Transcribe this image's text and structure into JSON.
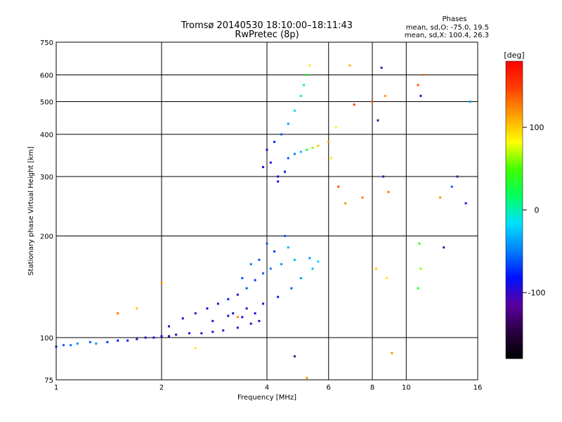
{
  "chart_data": {
    "type": "scatter",
    "title": "Tromsø 20140530 18:10:00–18:11:43",
    "subtitle": "RwPretec (8p)",
    "xlabel": "Frequency [MHz]",
    "ylabel": "Stationary phase Virtual Height [km]",
    "xscale": "log",
    "yscale": "log",
    "xlim": [
      1,
      16
    ],
    "ylim": [
      75,
      750
    ],
    "xticks": [
      1,
      2,
      4,
      6,
      8,
      10,
      16
    ],
    "yticks": [
      75,
      100,
      200,
      300,
      400,
      500,
      600,
      750
    ],
    "grid": true,
    "phase_stats": {
      "title": "Phases",
      "line_o": "mean, sd,O: -75.0, 19.5",
      "line_x": "mean, sd,X: 100.4, 26.3"
    },
    "colorbar": {
      "label": "[deg]",
      "min": -180,
      "max": 180,
      "ticks": [
        100,
        0,
        -100
      ],
      "colors": [
        "#000000",
        "#2a0040",
        "#5a00a0",
        "#0010ff",
        "#0080ff",
        "#00e0ff",
        "#00ff60",
        "#40ff00",
        "#ffff00",
        "#ffa000",
        "#ff4000",
        "#ff0000"
      ]
    },
    "series": [
      {
        "name": "traces",
        "points": [
          [
            1.0,
            94,
            -70
          ],
          [
            1.05,
            95,
            -60
          ],
          [
            1.1,
            95,
            -50
          ],
          [
            1.15,
            96,
            -45
          ],
          [
            1.25,
            97,
            -60
          ],
          [
            1.3,
            96,
            -40
          ],
          [
            1.4,
            97,
            -70
          ],
          [
            1.5,
            98,
            -80
          ],
          [
            1.6,
            98,
            -90
          ],
          [
            1.7,
            99,
            -100
          ],
          [
            1.8,
            100,
            -100
          ],
          [
            1.9,
            100,
            -90
          ],
          [
            2.0,
            101,
            -100
          ],
          [
            2.1,
            101,
            -90
          ],
          [
            2.2,
            102,
            -95
          ],
          [
            2.4,
            103,
            -90
          ],
          [
            2.6,
            103,
            -100
          ],
          [
            2.8,
            104,
            -95
          ],
          [
            3.0,
            105,
            -100
          ],
          [
            3.3,
            107,
            -100
          ],
          [
            3.6,
            110,
            -100
          ],
          [
            3.8,
            112,
            -95
          ],
          [
            2.1,
            108,
            -100
          ],
          [
            2.3,
            114,
            -95
          ],
          [
            2.5,
            118,
            -100
          ],
          [
            2.7,
            122,
            -90
          ],
          [
            2.9,
            126,
            -95
          ],
          [
            3.1,
            130,
            -80
          ],
          [
            3.3,
            134,
            -90
          ],
          [
            3.5,
            140,
            -60
          ],
          [
            3.7,
            148,
            -70
          ],
          [
            3.9,
            155,
            -60
          ],
          [
            4.1,
            160,
            -50
          ],
          [
            4.4,
            165,
            -40
          ],
          [
            4.8,
            170,
            -30
          ],
          [
            5.3,
            172,
            -40
          ],
          [
            5.6,
            168,
            -20
          ],
          [
            3.2,
            118,
            -100
          ],
          [
            3.5,
            122,
            -100
          ],
          [
            3.9,
            126,
            -90
          ],
          [
            4.3,
            132,
            -80
          ],
          [
            4.7,
            140,
            -60
          ],
          [
            5.0,
            150,
            -40
          ],
          [
            5.4,
            160,
            -30
          ],
          [
            2.8,
            112,
            -100
          ],
          [
            3.1,
            116,
            -95
          ],
          [
            3.4,
            115,
            -100
          ],
          [
            3.7,
            118,
            -90
          ],
          [
            4.0,
            190,
            -60
          ],
          [
            4.2,
            180,
            -70
          ],
          [
            4.5,
            200,
            -55
          ],
          [
            3.8,
            170,
            -60
          ],
          [
            3.6,
            165,
            -50
          ],
          [
            3.4,
            150,
            -65
          ],
          [
            4.6,
            185,
            -30
          ],
          [
            3.9,
            320,
            -90
          ],
          [
            4.1,
            330,
            -100
          ],
          [
            4.3,
            300,
            -90
          ],
          [
            4.5,
            310,
            -80
          ],
          [
            4.6,
            340,
            -60
          ],
          [
            4.8,
            350,
            -50
          ],
          [
            5.0,
            355,
            -30
          ],
          [
            5.2,
            360,
            20
          ],
          [
            5.4,
            365,
            60
          ],
          [
            5.6,
            370,
            100
          ],
          [
            4.2,
            380,
            -80
          ],
          [
            4.4,
            400,
            -60
          ],
          [
            4.6,
            430,
            -40
          ],
          [
            4.8,
            470,
            -20
          ],
          [
            5.0,
            520,
            -10
          ],
          [
            5.1,
            560,
            0
          ],
          [
            5.2,
            600,
            40
          ],
          [
            5.3,
            640,
            90
          ],
          [
            4.0,
            360,
            -100
          ],
          [
            4.3,
            290,
            -90
          ],
          [
            6.0,
            380,
            120
          ],
          [
            6.3,
            420,
            80
          ],
          [
            6.1,
            340,
            90
          ],
          [
            6.4,
            280,
            140
          ],
          [
            6.7,
            250,
            120
          ],
          [
            7.5,
            260,
            130
          ],
          [
            8.0,
            500,
            140
          ],
          [
            8.5,
            630,
            -110
          ],
          [
            8.7,
            520,
            120
          ],
          [
            8.3,
            440,
            -120
          ],
          [
            8.6,
            300,
            -100
          ],
          [
            8.9,
            270,
            130
          ],
          [
            8.2,
            160,
            100
          ],
          [
            8.8,
            150,
            90
          ],
          [
            9.1,
            90,
            120
          ],
          [
            10.8,
            560,
            140
          ],
          [
            11.0,
            520,
            -100
          ],
          [
            11.2,
            600,
            130
          ],
          [
            10.9,
            190,
            40
          ],
          [
            11.0,
            160,
            60
          ],
          [
            10.8,
            140,
            30
          ],
          [
            12.5,
            260,
            120
          ],
          [
            12.8,
            185,
            -100
          ],
          [
            13.5,
            280,
            -60
          ],
          [
            14.0,
            300,
            -120
          ],
          [
            14.8,
            250,
            -100
          ],
          [
            15.2,
            500,
            -40
          ],
          [
            7.1,
            490,
            150
          ],
          [
            6.9,
            640,
            110
          ],
          [
            1.5,
            118,
            130
          ],
          [
            2.0,
            145,
            120
          ],
          [
            1.7,
            122,
            100
          ],
          [
            3.3,
            115,
            120
          ],
          [
            4.8,
            88,
            -120
          ],
          [
            5.2,
            76,
            120
          ],
          [
            2.5,
            93,
            90
          ]
        ]
      }
    ]
  }
}
